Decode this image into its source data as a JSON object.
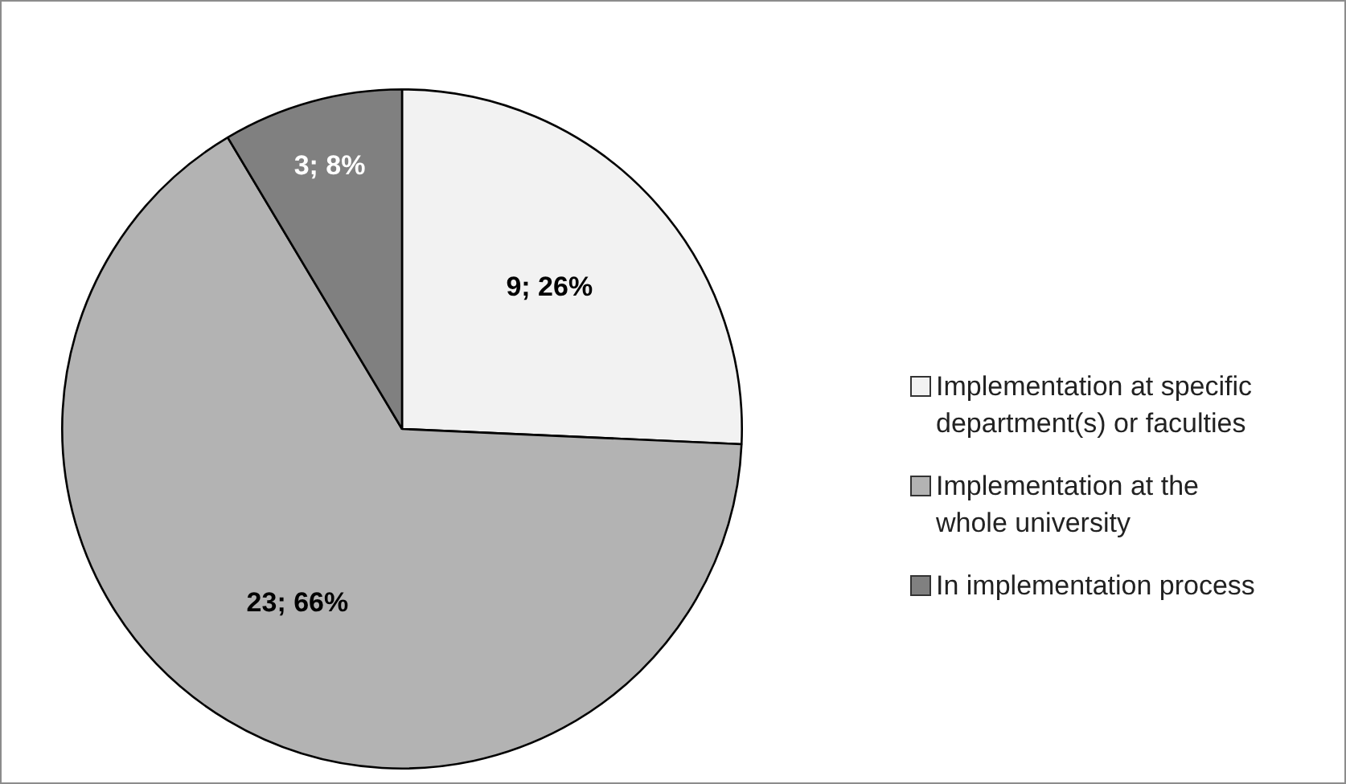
{
  "chart_data": {
    "type": "pie",
    "categories": [
      "Implementation at specific department(s) or faculties",
      "Implementation at the whole university",
      "In implementation process"
    ],
    "values": [
      9,
      23,
      3
    ],
    "colors": [
      "#f2f2f2",
      "#b3b3b3",
      "#808080"
    ],
    "value_labels": [
      "9; 26%",
      "23; 66%",
      "3; 8%"
    ],
    "legend": "right"
  }
}
